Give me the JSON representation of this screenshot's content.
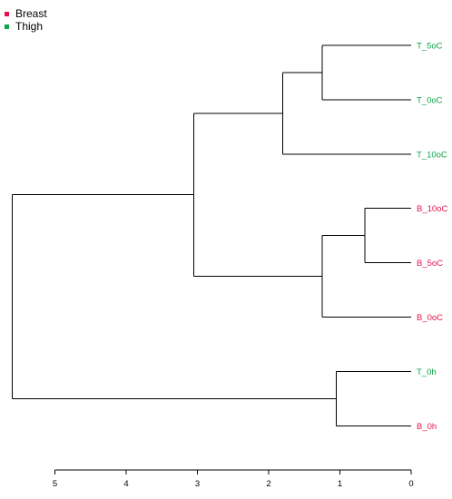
{
  "legend": {
    "items": [
      {
        "label": "Breast",
        "color": "#e0144c"
      },
      {
        "label": "Thigh",
        "color": "#0aa64a"
      }
    ]
  },
  "colors": {
    "breast": "#e0144c",
    "thigh": "#0aa64a",
    "line": "#000000"
  },
  "chart_data": {
    "type": "dendrogram",
    "orientation": "horizontal",
    "axis": {
      "min": 0,
      "max": 5,
      "reversed": true,
      "ticks": [
        5,
        4,
        3,
        2,
        1,
        0
      ],
      "tick_labels": [
        "5",
        "4",
        "3",
        "2",
        "1",
        "0"
      ]
    },
    "leaves": [
      {
        "label": "T_5oC",
        "group": "thigh"
      },
      {
        "label": "T_0oC",
        "group": "thigh"
      },
      {
        "label": "T_10oC",
        "group": "thigh"
      },
      {
        "label": "B_10oC",
        "group": "breast"
      },
      {
        "label": "B_5oC",
        "group": "breast"
      },
      {
        "label": "B_0oC",
        "group": "breast"
      },
      {
        "label": "T_0h",
        "group": "thigh"
      },
      {
        "label": "B_0h",
        "group": "breast"
      }
    ],
    "merges": [
      {
        "id": "m1",
        "children": [
          "T_5oC",
          "T_0oC"
        ],
        "height": 1.25
      },
      {
        "id": "m2",
        "children": [
          "m1",
          "T_10oC"
        ],
        "height": 1.8
      },
      {
        "id": "m3",
        "children": [
          "B_10oC",
          "B_5oC"
        ],
        "height": 0.65
      },
      {
        "id": "m4",
        "children": [
          "m3",
          "B_0oC"
        ],
        "height": 1.25
      },
      {
        "id": "m5",
        "children": [
          "m2",
          "m4"
        ],
        "height": 3.05
      },
      {
        "id": "m6",
        "children": [
          "T_0h",
          "B_0h"
        ],
        "height": 1.05
      },
      {
        "id": "m7",
        "children": [
          "m5",
          "m6"
        ],
        "height": 5.6
      }
    ]
  }
}
